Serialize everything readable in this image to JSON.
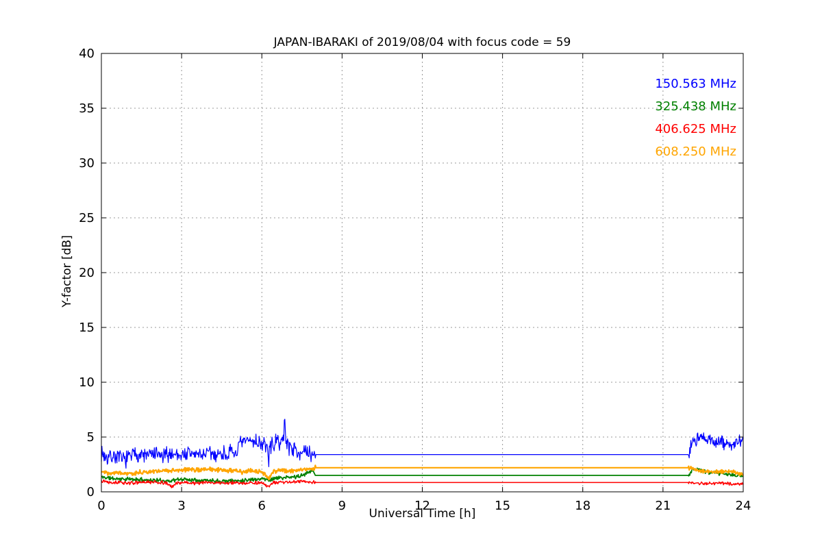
{
  "title": "JAPAN-IBARAKI of 2019/08/04 with focus code = 59",
  "xlabel": "Universal Time [h]",
  "ylabel": "Y-factor [dB]",
  "chart_data": {
    "type": "line",
    "title": "JAPAN-IBARAKI of 2019/08/04 with focus code = 59",
    "xlabel": "Universal Time [h]",
    "ylabel": "Y-factor [dB]",
    "xlim": [
      0,
      24
    ],
    "ylim": [
      0,
      40
    ],
    "xticks": [
      0,
      3,
      6,
      9,
      12,
      15,
      18,
      21,
      24
    ],
    "yticks": [
      0,
      5,
      10,
      15,
      20,
      25,
      30,
      35,
      40
    ],
    "grid": "dotted",
    "grid_color": "#999999",
    "legend_position": "upper right",
    "series": [
      {
        "name": "150.563 MHz",
        "color": "#0000ff",
        "width": 1.2,
        "seed": 7,
        "anchors_x": [
          0,
          0.2,
          0.5,
          0.8,
          1,
          1.3,
          1.6,
          2,
          2.3,
          2.6,
          3,
          3.3,
          3.6,
          4,
          4.3,
          4.6,
          5,
          5.2,
          5.5,
          5.8,
          6,
          6.2,
          6.25,
          6.3,
          6.5,
          6.82,
          6.86,
          6.9,
          7,
          7.2,
          7.5,
          7.8,
          8,
          21.95,
          22.1,
          22.3,
          22.6,
          23,
          23.3,
          23.6,
          24
        ],
        "anchors_y": [
          3.6,
          3.1,
          3.3,
          2.9,
          3.1,
          3.5,
          3.3,
          3.4,
          3.2,
          3.5,
          3.4,
          3.5,
          3.4,
          3.5,
          3.4,
          3.5,
          3.5,
          4.3,
          4.7,
          4.6,
          4.4,
          4.2,
          2.4,
          4.2,
          4.4,
          4.8,
          6.8,
          4.8,
          4.2,
          3.9,
          3.6,
          3.4,
          3.4,
          3.4,
          4.6,
          4.9,
          4.7,
          4.6,
          4.4,
          4.3,
          4.6
        ],
        "noisy_regions": [
          {
            "start": 0,
            "end": 8,
            "amp": 0.9
          },
          {
            "start": 21.95,
            "end": 24,
            "amp": 0.8
          }
        ]
      },
      {
        "name": "325.438 MHz",
        "color": "#008000",
        "width": 1.8,
        "seed": 11,
        "anchors_x": [
          0,
          0.5,
          1,
          1.5,
          2,
          2.5,
          3,
          3.5,
          4,
          4.5,
          5,
          5.5,
          6,
          6.3,
          6.5,
          7,
          7.5,
          7.8,
          7.9,
          8,
          21.95,
          22.1,
          22.3,
          22.6,
          23,
          23.4,
          23.7,
          24
        ],
        "anchors_y": [
          1.35,
          1.2,
          1.15,
          1.1,
          1.05,
          1.0,
          1.15,
          1.1,
          1.05,
          1.0,
          1.0,
          1.1,
          1.2,
          1.1,
          1.25,
          1.3,
          1.45,
          1.9,
          2.0,
          1.5,
          1.5,
          2.0,
          2.1,
          1.8,
          1.7,
          1.6,
          1.5,
          1.45
        ],
        "noisy_regions": [
          {
            "start": 0,
            "end": 7.9,
            "amp": 0.22
          },
          {
            "start": 21.95,
            "end": 24,
            "amp": 0.22
          }
        ]
      },
      {
        "name": "406.625 MHz",
        "color": "#ff0000",
        "width": 1.5,
        "seed": 13,
        "anchors_x": [
          0,
          0.3,
          0.6,
          1,
          1.5,
          2,
          2.4,
          2.65,
          2.8,
          3,
          3.5,
          4,
          4.5,
          5,
          5.3,
          5.6,
          6,
          6.25,
          6.4,
          7,
          7.5,
          8,
          21.95,
          22.2,
          22.6,
          23,
          23.5,
          24
        ],
        "anchors_y": [
          1.05,
          0.9,
          0.85,
          0.8,
          0.85,
          0.9,
          0.8,
          0.45,
          0.8,
          0.85,
          0.8,
          0.85,
          0.8,
          0.85,
          0.75,
          0.85,
          0.8,
          0.45,
          0.8,
          0.9,
          0.95,
          0.85,
          0.85,
          0.8,
          0.75,
          0.8,
          0.75,
          0.7
        ],
        "noisy_regions": [
          {
            "start": 0,
            "end": 8,
            "amp": 0.18
          },
          {
            "start": 21.95,
            "end": 24,
            "amp": 0.16
          }
        ]
      },
      {
        "name": "608.250 MHz",
        "color": "#ffa500",
        "width": 2.2,
        "seed": 17,
        "anchors_x": [
          0,
          0.3,
          0.6,
          1,
          1.5,
          2,
          2.5,
          3,
          3.5,
          4,
          4.5,
          5,
          5.3,
          5.6,
          6,
          6.25,
          6.4,
          6.8,
          7,
          7.4,
          7.7,
          8,
          21.95,
          22.15,
          22.4,
          22.7,
          23,
          23.3,
          23.6,
          24
        ],
        "anchors_y": [
          1.9,
          1.7,
          1.75,
          1.65,
          1.8,
          1.9,
          1.95,
          1.95,
          2.0,
          2.05,
          1.95,
          1.9,
          1.8,
          1.9,
          1.85,
          1.2,
          1.8,
          1.95,
          1.9,
          2.0,
          2.1,
          2.2,
          2.2,
          2.1,
          1.95,
          1.85,
          1.8,
          1.9,
          1.85,
          1.6
        ],
        "noisy_regions": [
          {
            "start": 0,
            "end": 8,
            "amp": 0.25
          },
          {
            "start": 21.95,
            "end": 24,
            "amp": 0.22
          }
        ]
      }
    ]
  }
}
